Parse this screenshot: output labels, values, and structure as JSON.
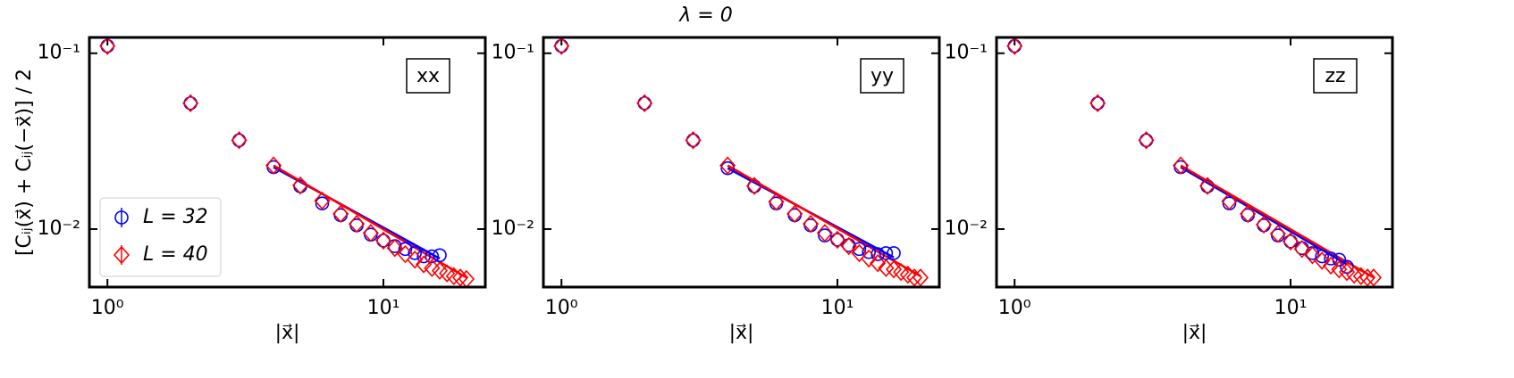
{
  "title": "λ = 0",
  "chart_data": [
    {
      "type": "scatter",
      "panel_label": "xx",
      "ylabel": "[Cᵢⱼ(x⃗) + Cᵢⱼ(−x⃗)] / 2",
      "xlabel": "|x⃗|",
      "log_x": true,
      "log_y": true,
      "legend": "lower left",
      "xlim": [
        0.86,
        23.4
      ],
      "ylim": [
        0.00468,
        0.123
      ],
      "xticks": [
        {
          "value": 1,
          "label": "10⁰"
        },
        {
          "value": 10,
          "label": "10¹"
        }
      ],
      "yticks": [
        {
          "value": 0.01,
          "label": "10⁻²"
        },
        {
          "value": 0.1,
          "label": "10⁻¹"
        }
      ],
      "series": [
        {
          "name": "L = 32",
          "color": "#0000ff",
          "marker": "circle",
          "x": [
            1,
            2,
            3,
            4,
            5,
            6,
            7,
            8,
            9,
            10,
            11,
            12,
            13,
            14,
            15,
            16
          ],
          "values": [
            0.11,
            0.052,
            0.032,
            0.0225,
            0.0175,
            0.014,
            0.012,
            0.0105,
            0.0093,
            0.0086,
            0.008,
            0.0077,
            0.0073,
            0.007,
            0.007,
            0.0071
          ]
        },
        {
          "name": "L = 40",
          "color": "#ff0000",
          "marker": "diamond",
          "x": [
            1,
            2,
            3,
            4,
            5,
            6,
            7,
            8,
            9,
            10,
            11,
            12,
            13,
            14,
            15,
            16,
            17,
            18,
            19,
            20
          ],
          "values": [
            0.11,
            0.052,
            0.032,
            0.023,
            0.0177,
            0.0145,
            0.0122,
            0.0107,
            0.0095,
            0.0086,
            0.0078,
            0.0072,
            0.0067,
            0.0063,
            0.006,
            0.0058,
            0.0056,
            0.0054,
            0.0053,
            0.0052
          ]
        }
      ],
      "fits": [
        {
          "color": "#0000ff",
          "x": [
            4,
            16
          ],
          "values": [
            0.0225,
            0.0068
          ]
        },
        {
          "color": "#ff0000",
          "x": [
            4,
            20
          ],
          "values": [
            0.023,
            0.0053
          ]
        }
      ]
    },
    {
      "type": "scatter",
      "panel_label": "yy",
      "xlabel": "|x⃗|",
      "log_x": true,
      "log_y": true,
      "xlim": [
        0.86,
        23.4
      ],
      "ylim": [
        0.00468,
        0.123
      ],
      "xticks": [
        {
          "value": 1,
          "label": "10⁰"
        },
        {
          "value": 10,
          "label": "10¹"
        }
      ],
      "yticks": [
        {
          "value": 0.01,
          "label": "10⁻²"
        },
        {
          "value": 0.1,
          "label": "10⁻¹"
        }
      ],
      "series": [
        {
          "name": "L = 32",
          "color": "#0000ff",
          "marker": "circle",
          "x": [
            1,
            2,
            3,
            4,
            5,
            6,
            7,
            8,
            9,
            10,
            11,
            12,
            13,
            14,
            15,
            16
          ],
          "values": [
            0.11,
            0.052,
            0.032,
            0.0222,
            0.0175,
            0.014,
            0.012,
            0.0105,
            0.0092,
            0.0087,
            0.0081,
            0.0077,
            0.0074,
            0.0072,
            0.0073,
            0.0073
          ]
        },
        {
          "name": "L = 40",
          "color": "#ff0000",
          "marker": "diamond",
          "x": [
            1,
            2,
            3,
            4,
            5,
            6,
            7,
            8,
            9,
            10,
            11,
            12,
            13,
            14,
            15,
            16,
            17,
            18,
            19,
            20
          ],
          "values": [
            0.11,
            0.052,
            0.032,
            0.023,
            0.0176,
            0.0143,
            0.0122,
            0.0107,
            0.0095,
            0.0087,
            0.008,
            0.0073,
            0.0068,
            0.0064,
            0.006,
            0.0059,
            0.0057,
            0.0055,
            0.0053,
            0.0053
          ]
        }
      ],
      "fits": [
        {
          "color": "#0000ff",
          "x": [
            4,
            16
          ],
          "values": [
            0.0222,
            0.0069
          ]
        },
        {
          "color": "#ff0000",
          "x": [
            4,
            20
          ],
          "values": [
            0.023,
            0.0054
          ]
        }
      ]
    },
    {
      "type": "scatter",
      "panel_label": "zz",
      "xlabel": "|x⃗|",
      "log_x": true,
      "log_y": true,
      "xlim": [
        0.86,
        23.4
      ],
      "ylim": [
        0.00468,
        0.123
      ],
      "xticks": [
        {
          "value": 1,
          "label": "10⁰"
        },
        {
          "value": 10,
          "label": "10¹"
        }
      ],
      "yticks": [
        {
          "value": 0.01,
          "label": "10⁻²"
        },
        {
          "value": 0.1,
          "label": "10⁻¹"
        }
      ],
      "series": [
        {
          "name": "L = 32",
          "color": "#0000ff",
          "marker": "circle",
          "x": [
            1,
            2,
            3,
            4,
            5,
            6,
            7,
            8,
            9,
            10,
            11,
            12,
            13,
            14,
            15,
            16
          ],
          "values": [
            0.11,
            0.052,
            0.032,
            0.0225,
            0.0175,
            0.014,
            0.012,
            0.0105,
            0.0092,
            0.0085,
            0.0078,
            0.0073,
            0.007,
            0.0068,
            0.0067,
            0.0061
          ]
        },
        {
          "name": "L = 40",
          "color": "#ff0000",
          "marker": "diamond",
          "x": [
            1,
            2,
            3,
            4,
            5,
            6,
            7,
            8,
            9,
            10,
            11,
            12,
            13,
            14,
            15,
            16,
            17,
            18,
            19,
            20
          ],
          "values": [
            0.11,
            0.052,
            0.032,
            0.023,
            0.0176,
            0.0144,
            0.0122,
            0.0106,
            0.0094,
            0.0085,
            0.0077,
            0.0071,
            0.0066,
            0.0062,
            0.0059,
            0.0057,
            0.0055,
            0.0054,
            0.0053,
            0.0053
          ]
        }
      ],
      "fits": [
        {
          "color": "#0000ff",
          "x": [
            4,
            16
          ],
          "values": [
            0.0225,
            0.0063
          ]
        },
        {
          "color": "#ff0000",
          "x": [
            4,
            20
          ],
          "values": [
            0.023,
            0.0053
          ]
        }
      ]
    }
  ]
}
